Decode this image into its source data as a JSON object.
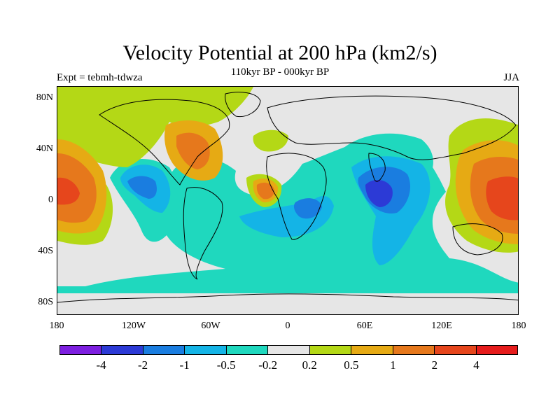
{
  "title": "Velocity Potential at 200 hPa (km2/s)",
  "subtitle": "110kyr BP - 000kyr BP",
  "left_label": "Expt = tebmh-tdwza",
  "right_label": "JJA",
  "lat_labels": [
    "80N",
    "40N",
    "0",
    "40S",
    "80S"
  ],
  "lon_labels": [
    "180",
    "120W",
    "60W",
    "0",
    "60E",
    "120E",
    "180"
  ],
  "colorbar": {
    "colors": [
      "#7d1fe0",
      "#2c3ad6",
      "#1a7de0",
      "#14b4e6",
      "#1fd8be",
      "#e6e6e6",
      "#b4d816",
      "#e6aa14",
      "#e6781c",
      "#e6461c",
      "#e61c1c"
    ],
    "labels": [
      "-4",
      "-2",
      "-1",
      "-0.5",
      "-0.2",
      "0.2",
      "0.5",
      "1",
      "2",
      "4"
    ]
  }
}
